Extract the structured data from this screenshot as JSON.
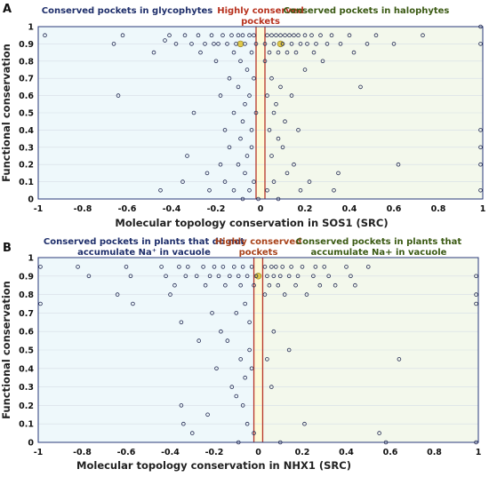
{
  "chart_data": [
    {
      "panel": "A",
      "type": "scatter",
      "xlabel": "Molecular topology conservation in SOS1 (SRC)",
      "ylabel": "Functional conservation",
      "xlim": [
        -1,
        1
      ],
      "ylim": [
        0,
        1
      ],
      "xticks": [
        "-1",
        "-0.8",
        "-0.6",
        "-0.4",
        "-0.2",
        "0",
        "0.2",
        "0.4",
        "0.6",
        "0.8",
        "1"
      ],
      "yticks": [
        "0",
        "0.1",
        "0.2",
        "0.3",
        "0.4",
        "0.5",
        "0.6",
        "0.7",
        "0.8",
        "0.9",
        "1"
      ],
      "grid": true,
      "center_band": [
        -0.02,
        0.02
      ],
      "regions": {
        "left": {
          "lines": [
            "Conserved pockets in glycophytes"
          ],
          "color": "#1f2f6b"
        },
        "center": {
          "lines": [
            "Highly conserved",
            "pockets"
          ],
          "color": "#b8331f"
        },
        "right": {
          "lines": [
            "Conserved pockets in halophytes"
          ],
          "color": "#3b5a14"
        }
      },
      "colors": {
        "left_bg": "#eef8fb",
        "right_bg": "#f3f8ec",
        "band_fill": "#fdfad8",
        "band_edge": "#b7352a",
        "points": "#232a52",
        "highlight": "#e0c84a"
      },
      "highlight_x": [
        -0.09,
        0.09
      ],
      "highlight_y": 0.9,
      "points": [
        [
          -0.97,
          0.95
        ],
        [
          -0.66,
          0.9
        ],
        [
          -0.64,
          0.6
        ],
        [
          -0.62,
          0.95
        ],
        [
          -0.48,
          0.85
        ],
        [
          -0.45,
          0.05
        ],
        [
          -0.43,
          0.92
        ],
        [
          -0.41,
          0.95
        ],
        [
          -0.38,
          0.9
        ],
        [
          -0.35,
          0.1
        ],
        [
          -0.34,
          0.95
        ],
        [
          -0.33,
          0.25
        ],
        [
          -0.31,
          0.9
        ],
        [
          -0.3,
          0.5
        ],
        [
          -0.28,
          0.95
        ],
        [
          -0.27,
          0.85
        ],
        [
          -0.25,
          0.9
        ],
        [
          -0.24,
          0.15
        ],
        [
          -0.23,
          0.05
        ],
        [
          -0.22,
          0.95
        ],
        [
          -0.21,
          0.9
        ],
        [
          -0.2,
          0.8
        ],
        [
          -0.19,
          0.9
        ],
        [
          -0.18,
          0.6
        ],
        [
          -0.18,
          0.2
        ],
        [
          -0.17,
          0.95
        ],
        [
          -0.16,
          0.4
        ],
        [
          -0.16,
          0.1
        ],
        [
          -0.15,
          0.9
        ],
        [
          -0.14,
          0.7
        ],
        [
          -0.14,
          0.3
        ],
        [
          -0.13,
          0.95
        ],
        [
          -0.12,
          0.85
        ],
        [
          -0.12,
          0.5
        ],
        [
          -0.12,
          0.05
        ],
        [
          -0.11,
          0.9
        ],
        [
          -0.1,
          0.95
        ],
        [
          -0.1,
          0.65
        ],
        [
          -0.1,
          0.2
        ],
        [
          -0.09,
          0.8
        ],
        [
          -0.09,
          0.35
        ],
        [
          -0.08,
          0.95
        ],
        [
          -0.08,
          0.45
        ],
        [
          -0.08,
          0.0
        ],
        [
          -0.07,
          0.9
        ],
        [
          -0.07,
          0.55
        ],
        [
          -0.07,
          0.15
        ],
        [
          -0.06,
          0.75
        ],
        [
          -0.06,
          0.25
        ],
        [
          -0.05,
          0.95
        ],
        [
          -0.05,
          0.6
        ],
        [
          -0.05,
          0.05
        ],
        [
          -0.04,
          0.85
        ],
        [
          -0.04,
          0.4
        ],
        [
          -0.04,
          0.3
        ],
        [
          -0.03,
          0.95
        ],
        [
          -0.03,
          0.7
        ],
        [
          -0.03,
          0.1
        ],
        [
          -0.02,
          0.9
        ],
        [
          -0.02,
          0.5
        ],
        [
          -0.01,
          0.0
        ],
        [
          0.02,
          0.9
        ],
        [
          0.02,
          0.8
        ],
        [
          0.03,
          0.95
        ],
        [
          0.03,
          0.6
        ],
        [
          0.03,
          0.05
        ],
        [
          0.04,
          0.85
        ],
        [
          0.04,
          0.4
        ],
        [
          0.05,
          0.95
        ],
        [
          0.05,
          0.7
        ],
        [
          0.05,
          0.25
        ],
        [
          0.06,
          0.9
        ],
        [
          0.06,
          0.5
        ],
        [
          0.06,
          0.1
        ],
        [
          0.07,
          0.95
        ],
        [
          0.07,
          0.55
        ],
        [
          0.08,
          0.85
        ],
        [
          0.08,
          0.35
        ],
        [
          0.08,
          0.0
        ],
        [
          0.09,
          0.95
        ],
        [
          0.09,
          0.65
        ],
        [
          0.1,
          0.9
        ],
        [
          0.1,
          0.3
        ],
        [
          0.11,
          0.95
        ],
        [
          0.11,
          0.45
        ],
        [
          0.12,
          0.85
        ],
        [
          0.12,
          0.15
        ],
        [
          0.13,
          0.95
        ],
        [
          0.14,
          0.9
        ],
        [
          0.14,
          0.6
        ],
        [
          0.15,
          0.95
        ],
        [
          0.15,
          0.2
        ],
        [
          0.16,
          0.85
        ],
        [
          0.17,
          0.95
        ],
        [
          0.17,
          0.4
        ],
        [
          0.18,
          0.9
        ],
        [
          0.18,
          0.05
        ],
        [
          0.2,
          0.95
        ],
        [
          0.2,
          0.75
        ],
        [
          0.21,
          0.9
        ],
        [
          0.22,
          0.1
        ],
        [
          0.23,
          0.95
        ],
        [
          0.24,
          0.85
        ],
        [
          0.25,
          0.9
        ],
        [
          0.27,
          0.95
        ],
        [
          0.28,
          0.8
        ],
        [
          0.3,
          0.9
        ],
        [
          0.32,
          0.95
        ],
        [
          0.33,
          0.05
        ],
        [
          0.35,
          0.15
        ],
        [
          0.36,
          0.9
        ],
        [
          0.4,
          0.95
        ],
        [
          0.42,
          0.85
        ],
        [
          0.45,
          0.65
        ],
        [
          0.48,
          0.9
        ],
        [
          0.52,
          0.95
        ],
        [
          0.6,
          0.9
        ],
        [
          0.62,
          0.2
        ],
        [
          0.73,
          0.95
        ],
        [
          0.99,
          0.05
        ],
        [
          0.99,
          0.2
        ],
        [
          0.99,
          0.3
        ],
        [
          0.99,
          0.4
        ],
        [
          0.99,
          0.9
        ],
        [
          0.99,
          1.0
        ]
      ]
    },
    {
      "panel": "B",
      "type": "scatter",
      "xlabel": "Molecular topology conservation in NHX1 (SRC)",
      "ylabel": "Functional conservation",
      "xlim": [
        -1,
        1
      ],
      "ylim": [
        0,
        1
      ],
      "xticks": [
        "-1",
        "-0.8",
        "-0.6",
        "-0.4",
        "-0.2",
        "0",
        "0.2",
        "0.4",
        "0.6",
        "0.8",
        "1"
      ],
      "yticks": [
        "0",
        "0.1",
        "0.2",
        "0.3",
        "0.4",
        "0.5",
        "0.6",
        "0.7",
        "0.8",
        "0.9",
        "1"
      ],
      "grid": true,
      "center_band": [
        -0.02,
        0.02
      ],
      "regions": {
        "left": {
          "lines": [
            "Conserved pockets in plants that do not",
            "accumulate Na⁺ in vacuole"
          ],
          "color": "#1f2f6b"
        },
        "center": {
          "lines": [
            "Highly conserved",
            "pockets"
          ],
          "color": "#a8421a"
        },
        "right": {
          "lines": [
            "Conserved pockets in plants that",
            "accumulate Na+ in vacuole"
          ],
          "color": "#3b5a14"
        }
      },
      "colors": {
        "left_bg": "#eef8fb",
        "right_bg": "#f3f8ec",
        "band_fill": "#fdfad8",
        "band_edge": "#b7352a",
        "points": "#232a52",
        "highlight": "#e0c84a"
      },
      "highlight_x": [
        0.0
      ],
      "highlight_y": 0.9,
      "points": [
        [
          -0.99,
          0.75
        ],
        [
          -0.99,
          0.95
        ],
        [
          -0.82,
          0.95
        ],
        [
          -0.77,
          0.9
        ],
        [
          -0.64,
          0.8
        ],
        [
          -0.6,
          0.95
        ],
        [
          -0.58,
          0.9
        ],
        [
          -0.57,
          0.75
        ],
        [
          -0.44,
          0.95
        ],
        [
          -0.42,
          0.9
        ],
        [
          -0.4,
          0.8
        ],
        [
          -0.38,
          0.85
        ],
        [
          -0.36,
          0.95
        ],
        [
          -0.35,
          0.65
        ],
        [
          -0.35,
          0.2
        ],
        [
          -0.34,
          0.1
        ],
        [
          -0.33,
          0.9
        ],
        [
          -0.32,
          0.95
        ],
        [
          -0.3,
          0.05
        ],
        [
          -0.28,
          0.9
        ],
        [
          -0.27,
          0.55
        ],
        [
          -0.25,
          0.95
        ],
        [
          -0.24,
          0.85
        ],
        [
          -0.23,
          0.15
        ],
        [
          -0.22,
          0.9
        ],
        [
          -0.21,
          0.7
        ],
        [
          -0.2,
          0.95
        ],
        [
          -0.19,
          0.4
        ],
        [
          -0.18,
          0.9
        ],
        [
          -0.17,
          0.6
        ],
        [
          -0.16,
          0.95
        ],
        [
          -0.15,
          0.85
        ],
        [
          -0.14,
          0.55
        ],
        [
          -0.13,
          0.9
        ],
        [
          -0.12,
          0.3
        ],
        [
          -0.11,
          0.95
        ],
        [
          -0.1,
          0.7
        ],
        [
          -0.1,
          0.25
        ],
        [
          -0.09,
          0.9
        ],
        [
          -0.09,
          0.0
        ],
        [
          -0.08,
          0.85
        ],
        [
          -0.08,
          0.45
        ],
        [
          -0.07,
          0.95
        ],
        [
          -0.07,
          0.2
        ],
        [
          -0.06,
          0.75
        ],
        [
          -0.06,
          0.35
        ],
        [
          -0.05,
          0.9
        ],
        [
          -0.05,
          0.1
        ],
        [
          -0.04,
          0.65
        ],
        [
          -0.04,
          0.5
        ],
        [
          -0.03,
          0.95
        ],
        [
          -0.03,
          0.4
        ],
        [
          -0.02,
          0.85
        ],
        [
          -0.02,
          0.05
        ],
        [
          -0.01,
          0.9
        ],
        [
          0.03,
          0.95
        ],
        [
          0.03,
          0.8
        ],
        [
          0.04,
          0.9
        ],
        [
          0.04,
          0.45
        ],
        [
          0.05,
          0.85
        ],
        [
          0.06,
          0.95
        ],
        [
          0.06,
          0.3
        ],
        [
          0.07,
          0.9
        ],
        [
          0.07,
          0.6
        ],
        [
          0.08,
          0.95
        ],
        [
          0.09,
          0.85
        ],
        [
          0.1,
          0.9
        ],
        [
          0.1,
          0.0
        ],
        [
          0.11,
          0.95
        ],
        [
          0.12,
          0.8
        ],
        [
          0.14,
          0.9
        ],
        [
          0.14,
          0.5
        ],
        [
          0.15,
          0.95
        ],
        [
          0.17,
          0.85
        ],
        [
          0.18,
          0.9
        ],
        [
          0.2,
          0.95
        ],
        [
          0.21,
          0.1
        ],
        [
          0.22,
          0.8
        ],
        [
          0.25,
          0.9
        ],
        [
          0.26,
          0.95
        ],
        [
          0.28,
          0.85
        ],
        [
          0.3,
          0.95
        ],
        [
          0.32,
          0.9
        ],
        [
          0.35,
          0.85
        ],
        [
          0.4,
          0.95
        ],
        [
          0.42,
          0.9
        ],
        [
          0.44,
          0.85
        ],
        [
          0.5,
          0.95
        ],
        [
          0.55,
          0.05
        ],
        [
          0.58,
          0.0
        ],
        [
          0.64,
          0.45
        ],
        [
          0.99,
          0.0
        ],
        [
          0.99,
          0.75
        ],
        [
          0.99,
          0.8
        ],
        [
          0.99,
          0.9
        ]
      ]
    }
  ]
}
